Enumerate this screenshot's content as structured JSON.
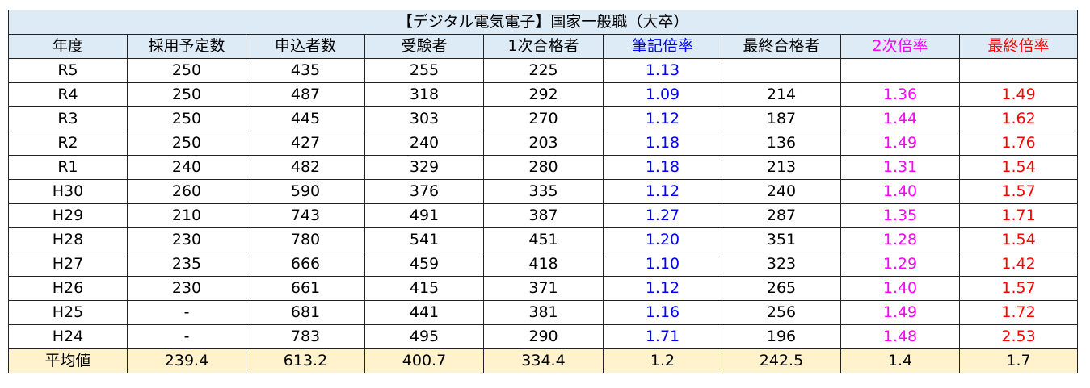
{
  "table": {
    "title": "【デジタル電気電子】国家一般職（大卒）",
    "header": [
      "年度",
      "採用予定数",
      "申込者数",
      "受験者",
      "1次合格者",
      "筆記倍率",
      "最終合格者",
      "2次倍率",
      "最終倍率"
    ],
    "rows": [
      [
        "R5",
        "250",
        "435",
        "255",
        "225",
        "1.13",
        null,
        null,
        null
      ],
      [
        "R4",
        "250",
        "487",
        "318",
        "292",
        "1.09",
        "214",
        "1.36",
        "1.49"
      ],
      [
        "R3",
        "250",
        "445",
        "303",
        "270",
        "1.12",
        "187",
        "1.44",
        "1.62"
      ],
      [
        "R2",
        "250",
        "427",
        "240",
        "203",
        "1.18",
        "136",
        "1.49",
        "1.76"
      ],
      [
        "R1",
        "240",
        "482",
        "329",
        "280",
        "1.18",
        "213",
        "1.31",
        "1.54"
      ],
      [
        "H30",
        "260",
        "590",
        "376",
        "335",
        "1.12",
        "240",
        "1.40",
        "1.57"
      ],
      [
        "H29",
        "210",
        "743",
        "491",
        "387",
        "1.27",
        "287",
        "1.35",
        "1.71"
      ],
      [
        "H28",
        "230",
        "780",
        "541",
        "451",
        "1.20",
        "351",
        "1.28",
        "1.54"
      ],
      [
        "H27",
        "235",
        "666",
        "459",
        "418",
        "1.10",
        "323",
        "1.29",
        "1.42"
      ],
      [
        "H26",
        "230",
        "661",
        "415",
        "371",
        "1.12",
        "265",
        "1.40",
        "1.57"
      ],
      [
        "H25",
        "-",
        "681",
        "441",
        "381",
        "1.16",
        "256",
        "1.49",
        "1.72"
      ],
      [
        "H24",
        "-",
        "783",
        "495",
        "290",
        "1.71",
        "196",
        "1.48",
        "2.53"
      ]
    ],
    "average": [
      "平均値",
      "239.4",
      "613.2",
      "400.7",
      "334.4",
      "1.2",
      "242.5",
      "1.4",
      "1.7"
    ]
  }
}
